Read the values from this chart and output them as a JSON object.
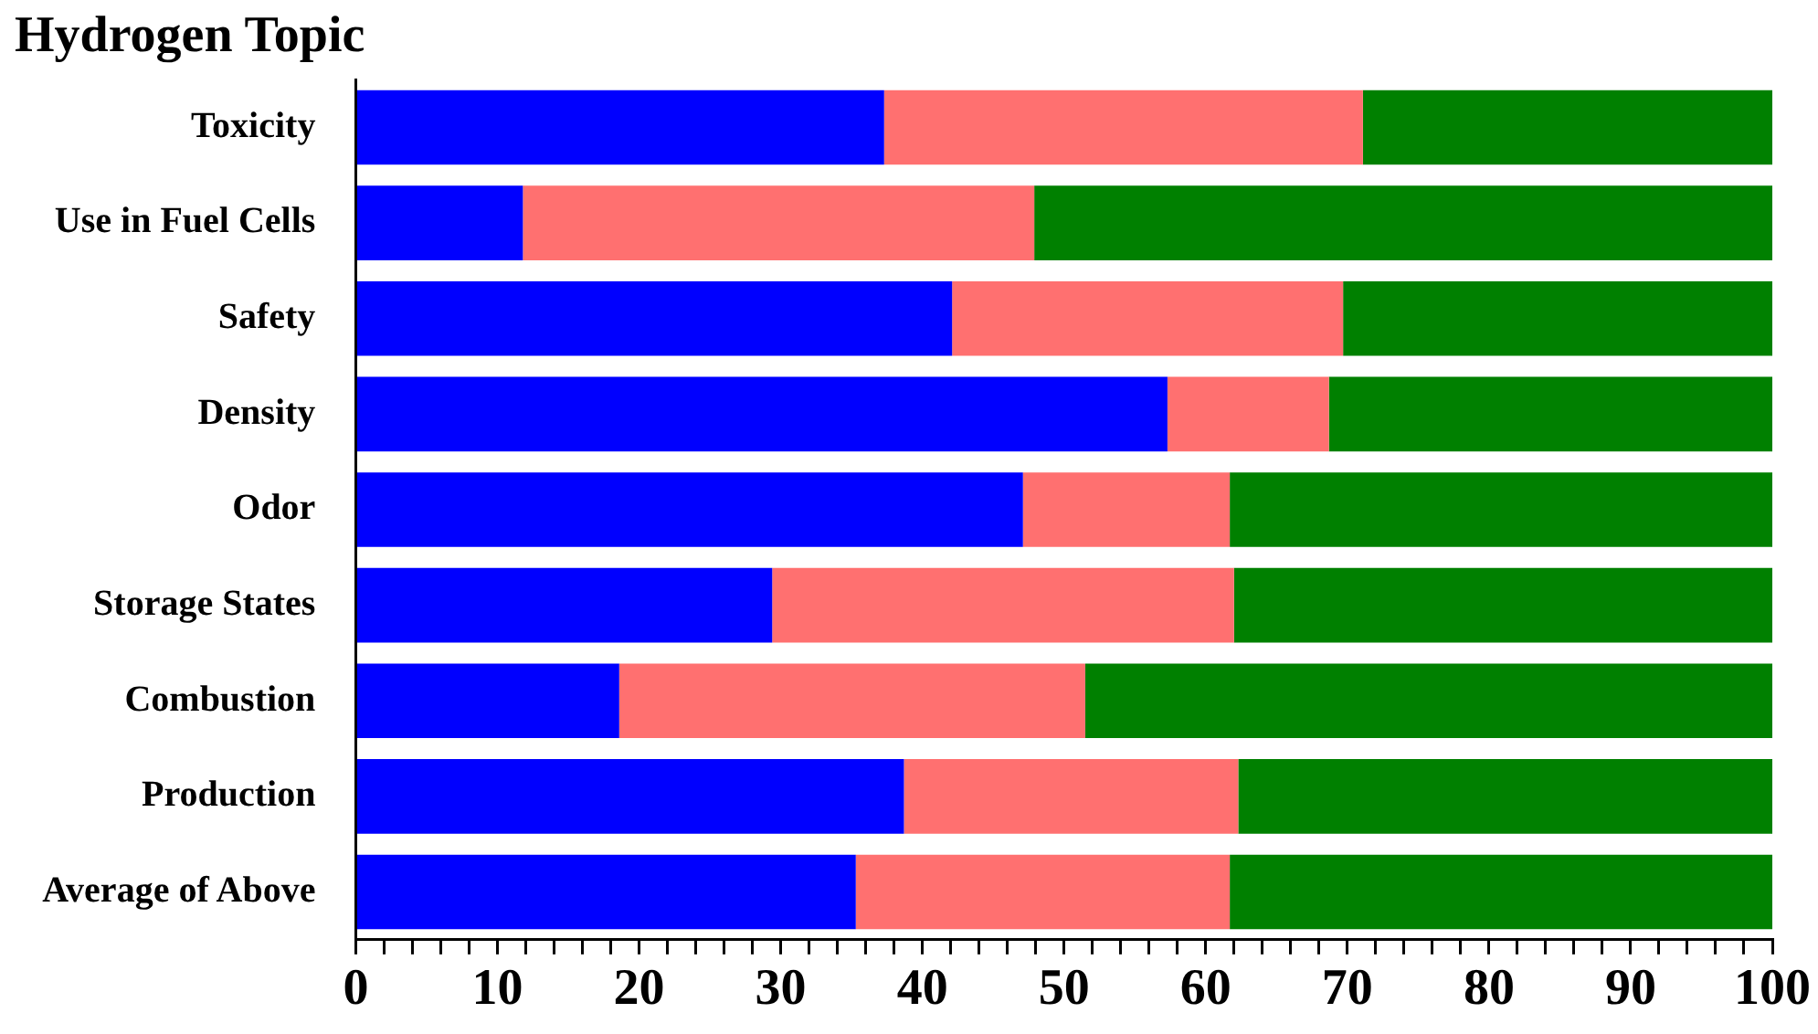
{
  "chart_data": {
    "type": "bar",
    "orientation": "horizontal",
    "stacked": true,
    "title": "Hydrogen Topic",
    "categories": [
      "Toxicity",
      "Use in Fuel Cells",
      "Safety",
      "Density",
      "Odor",
      "Storage States",
      "Combustion",
      "Production",
      "Average of Above"
    ],
    "series": [
      {
        "color": "#0000ff",
        "values": [
          37.3,
          11.8,
          42.1,
          57.3,
          47.1,
          29.4,
          18.6,
          38.7,
          35.3
        ]
      },
      {
        "color": "#ff7070",
        "values": [
          33.8,
          36.1,
          27.6,
          11.4,
          14.6,
          32.6,
          32.9,
          23.6,
          26.4
        ]
      },
      {
        "color": "#008000",
        "values": [
          28.9,
          52.1,
          30.3,
          31.3,
          38.3,
          38.0,
          48.5,
          37.7,
          38.3
        ]
      }
    ],
    "xlim": [
      0,
      100
    ],
    "xticks": [
      0,
      {
        "value": 2,
        "label": null
      },
      {
        "value": 4,
        "label": null
      },
      {
        "value": 6,
        "label": null
      },
      {
        "value": 8,
        "label": null
      },
      10,
      {
        "value": 12,
        "label": null
      },
      {
        "value": 14,
        "label": null
      },
      {
        "value": 16,
        "label": null
      },
      {
        "value": 18,
        "label": null
      },
      20,
      {
        "value": 22,
        "label": null
      },
      {
        "value": 24,
        "label": null
      },
      {
        "value": 26,
        "label": null
      },
      {
        "value": 28,
        "label": null
      },
      30,
      {
        "value": 32,
        "label": null
      },
      {
        "value": 34,
        "label": null
      },
      {
        "value": 36,
        "label": null
      },
      {
        "value": 38,
        "label": null
      },
      40,
      {
        "value": 42,
        "label": null
      },
      {
        "value": 44,
        "label": null
      },
      {
        "value": 46,
        "label": null
      },
      {
        "value": 48,
        "label": null
      },
      50,
      {
        "value": 52,
        "label": null
      },
      {
        "value": 54,
        "label": null
      },
      {
        "value": 56,
        "label": null
      },
      {
        "value": 58,
        "label": null
      },
      60,
      {
        "value": 62,
        "label": null
      },
      {
        "value": 64,
        "label": null
      },
      {
        "value": 66,
        "label": null
      },
      {
        "value": 68,
        "label": null
      },
      70,
      {
        "value": 72,
        "label": null
      },
      {
        "value": 74,
        "label": null
      },
      {
        "value": 76,
        "label": null
      },
      {
        "value": 78,
        "label": null
      },
      80,
      {
        "value": 82,
        "label": null
      },
      {
        "value": 84,
        "label": null
      },
      {
        "value": 86,
        "label": null
      },
      {
        "value": 88,
        "label": null
      },
      90,
      {
        "value": 92,
        "label": null
      },
      {
        "value": 94,
        "label": null
      },
      {
        "value": 96,
        "label": null
      },
      {
        "value": 98,
        "label": null
      },
      100
    ],
    "grid": false,
    "legend": false
  }
}
